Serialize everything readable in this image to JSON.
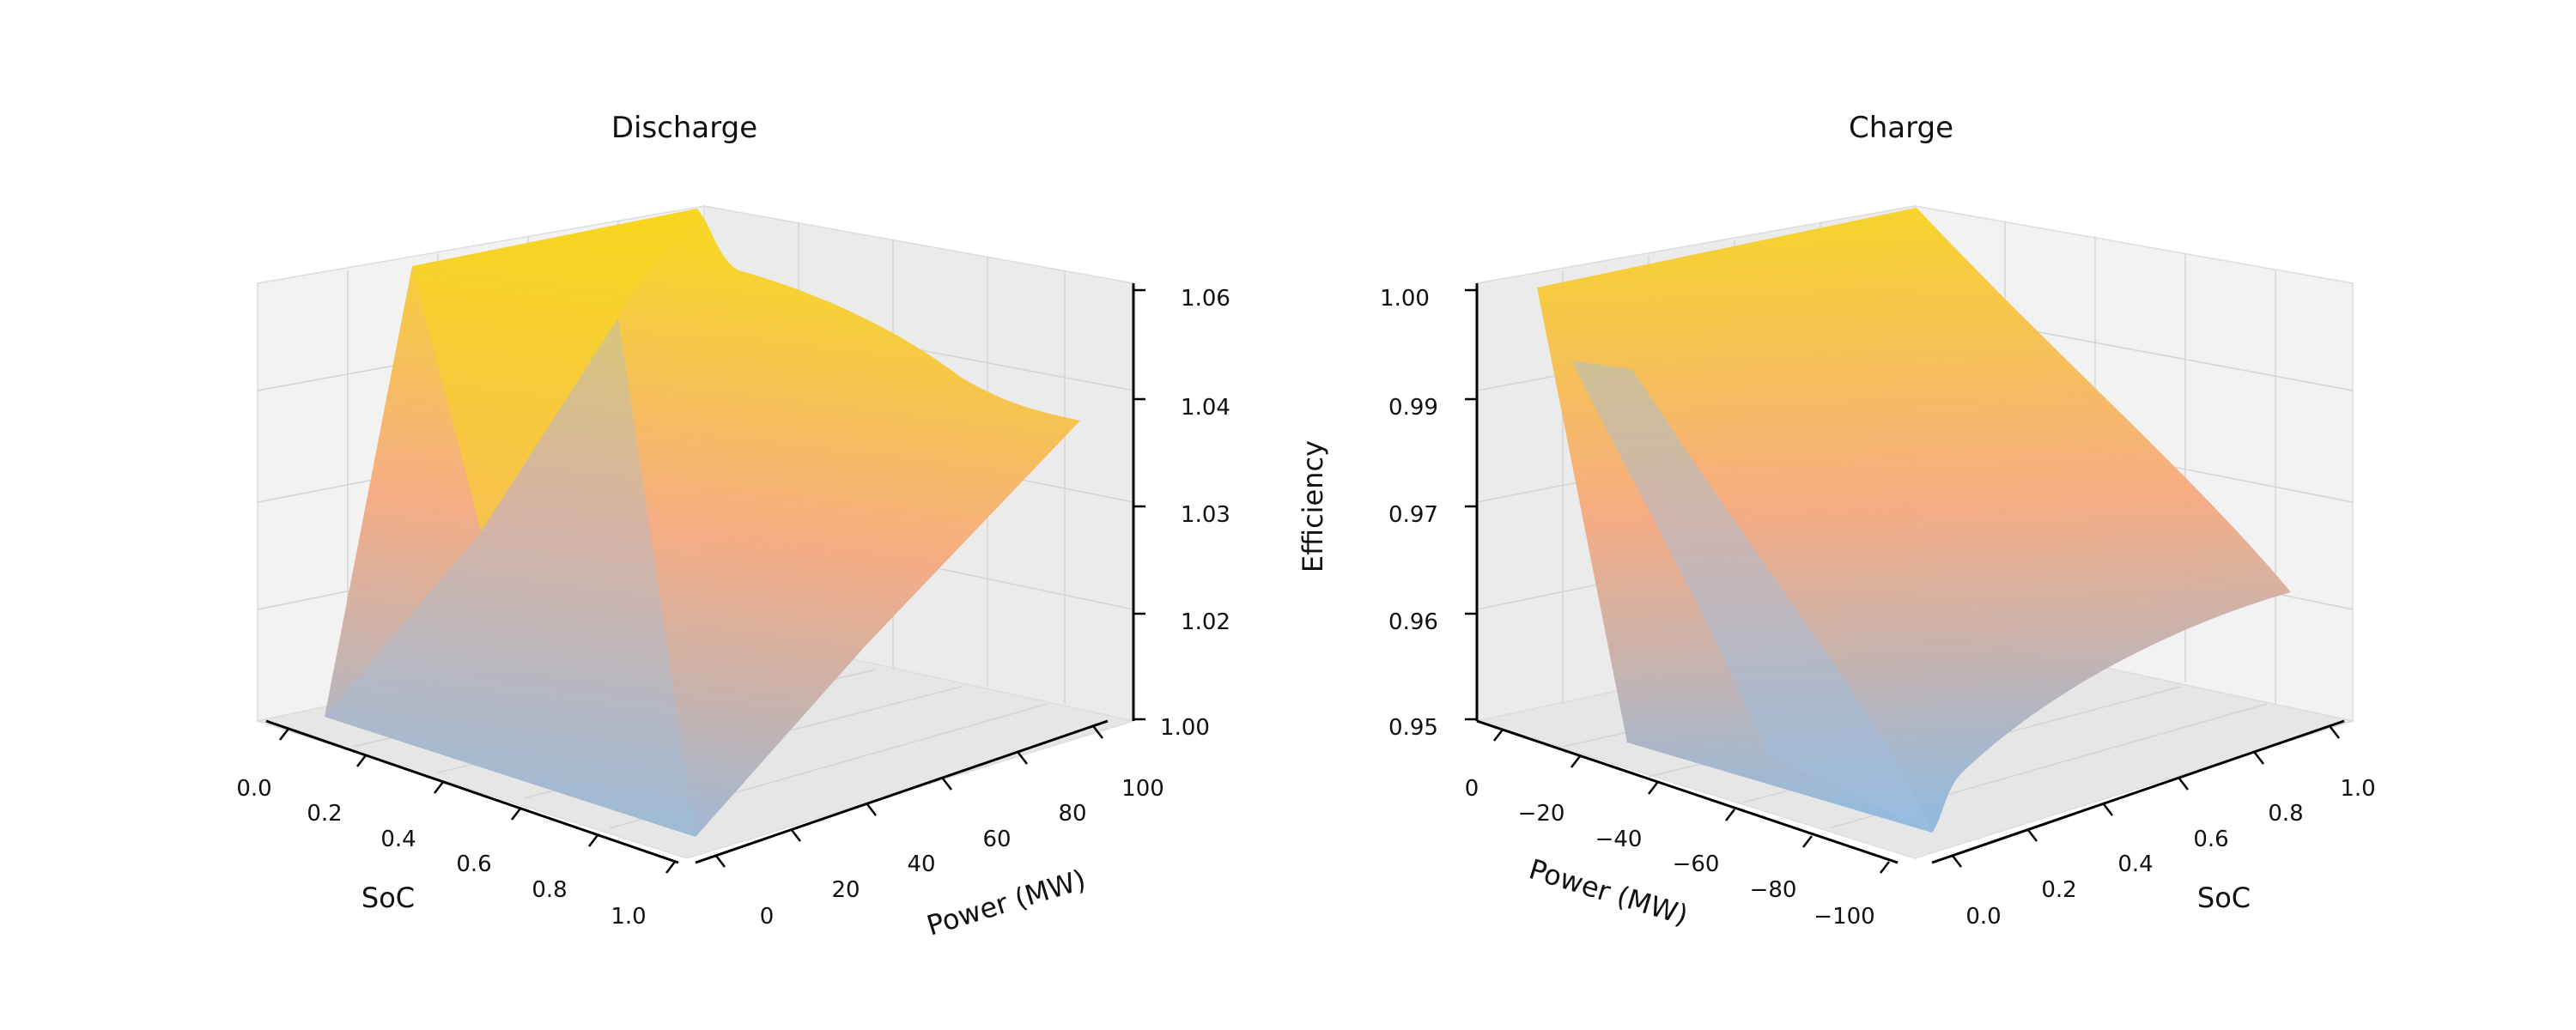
{
  "chart_data": [
    {
      "type": "surface",
      "title": "Discharge",
      "x_axis": {
        "label": "SoC",
        "ticks": [
          "0.0",
          "0.2",
          "0.4",
          "0.6",
          "0.8",
          "1.0"
        ],
        "range": [
          0,
          1
        ]
      },
      "y_axis": {
        "label": "Power (MW)",
        "ticks": [
          "0",
          "20",
          "40",
          "60",
          "80",
          "100"
        ],
        "range": [
          0,
          100
        ]
      },
      "z_axis": {
        "label": "",
        "ticks": [
          "1.00",
          "1.02",
          "1.03",
          "1.04",
          "1.06"
        ],
        "range": [
          1.0,
          1.06
        ]
      },
      "colormap": [
        "#8fb8de",
        "#f6a97e",
        "#f7d51d"
      ],
      "surface": {
        "soc": [
          0.0,
          0.2,
          0.4,
          0.6,
          0.8,
          1.0
        ],
        "power": [
          0,
          20,
          40,
          60,
          80,
          100
        ],
        "efficiency": [
          [
            1.0,
            1.06,
            1.058,
            1.056,
            1.055,
            1.054
          ],
          [
            1.0,
            1.045,
            1.05,
            1.051,
            1.052,
            1.053
          ],
          [
            1.0,
            1.035,
            1.042,
            1.046,
            1.048,
            1.05
          ],
          [
            1.0,
            1.025,
            1.033,
            1.039,
            1.043,
            1.046
          ],
          [
            1.0,
            1.015,
            1.024,
            1.031,
            1.036,
            1.04
          ],
          [
            1.0,
            1.006,
            1.013,
            1.02,
            1.027,
            1.034
          ]
        ]
      },
      "grid": true
    },
    {
      "type": "surface",
      "title": "Charge",
      "x_axis": {
        "label": "SoC",
        "ticks": [
          "0.0",
          "0.2",
          "0.4",
          "0.6",
          "0.8",
          "1.0"
        ],
        "range": [
          0,
          1
        ]
      },
      "y_axis": {
        "label": "Power (MW)",
        "ticks": [
          "0",
          "−20",
          "−40",
          "−60",
          "−80",
          "−100"
        ],
        "range": [
          -100,
          0
        ]
      },
      "z_axis": {
        "label": "Efficiency",
        "ticks": [
          "0.95",
          "0.96",
          "0.97",
          "0.99",
          "1.00"
        ],
        "range": [
          0.95,
          1.0
        ]
      },
      "colormap": [
        "#8fb8de",
        "#f6a97e",
        "#f7d51d"
      ],
      "surface": {
        "soc": [
          0.0,
          0.2,
          0.4,
          0.6,
          0.8,
          1.0
        ],
        "power": [
          0,
          -20,
          -40,
          -60,
          -80,
          -100
        ],
        "efficiency": [
          [
            1.0,
            0.985,
            0.978,
            0.973,
            0.97,
            0.968
          ],
          [
            1.0,
            0.99,
            0.982,
            0.976,
            0.971,
            0.967
          ],
          [
            1.0,
            0.993,
            0.986,
            0.979,
            0.973,
            0.966
          ],
          [
            1.0,
            0.995,
            0.988,
            0.981,
            0.973,
            0.965
          ],
          [
            1.0,
            0.99,
            0.98,
            0.97,
            0.96,
            0.952
          ],
          [
            1.0,
            0.975,
            0.962,
            0.955,
            0.951,
            0.95
          ]
        ]
      },
      "grid": true
    }
  ]
}
